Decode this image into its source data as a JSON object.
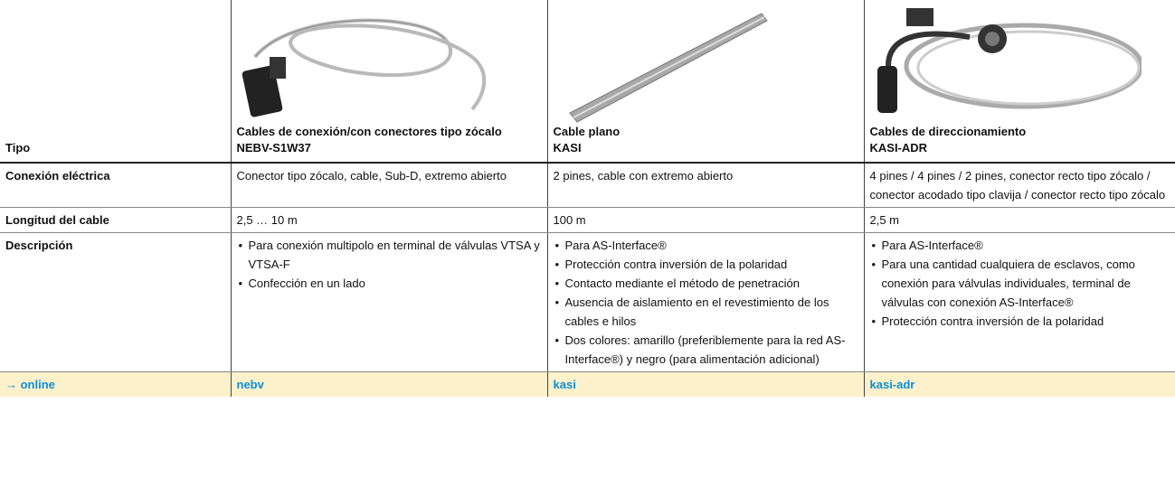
{
  "header": {
    "label": "Tipo",
    "columns": [
      {
        "title": "Cables de conexión/con conectores tipo zócalo",
        "code": "NEBV-S1W37"
      },
      {
        "title": "Cable plano",
        "code": "KASI"
      },
      {
        "title": "Cables de direccionamiento",
        "code": "KASI-ADR"
      }
    ]
  },
  "rows": [
    {
      "label": "Conexión eléctrica",
      "cells": [
        "Conector tipo zócalo, cable, Sub-D, extremo abierto",
        "2 pines, cable con extremo abierto",
        "4 pines / 4 pines / 2 pines, conector recto tipo zócalo / conector acodado tipo clavija / conector recto tipo zócalo"
      ]
    },
    {
      "label": "Longitud del cable",
      "cells": [
        "2,5 … 10 m",
        "100 m",
        "2,5 m"
      ]
    },
    {
      "label": "Descripción",
      "cells": [
        [
          "Para conexión multipolo en terminal de válvulas VTSA y VTSA-F",
          "Confección en un lado"
        ],
        [
          "Para AS-Interface®",
          "Protección contra inversión de la polaridad",
          "Contacto mediante el método de penetración",
          "Ausencia de aislamiento en el revestimiento de los cables e hilos",
          "Dos colores: amarillo (preferiblemente para la red AS-Interface®) y negro (para alimentación adicional)"
        ],
        [
          "Para AS-Interface®",
          "Para una cantidad cualquiera de esclavos, como conexión para válvulas individuales, terminal de válvulas con conexión AS-Interface®",
          "Protección contra inversión de la polaridad"
        ]
      ]
    }
  ],
  "online": {
    "label": "→ online",
    "links": [
      "nebv",
      "kasi",
      "kasi-adr"
    ]
  }
}
